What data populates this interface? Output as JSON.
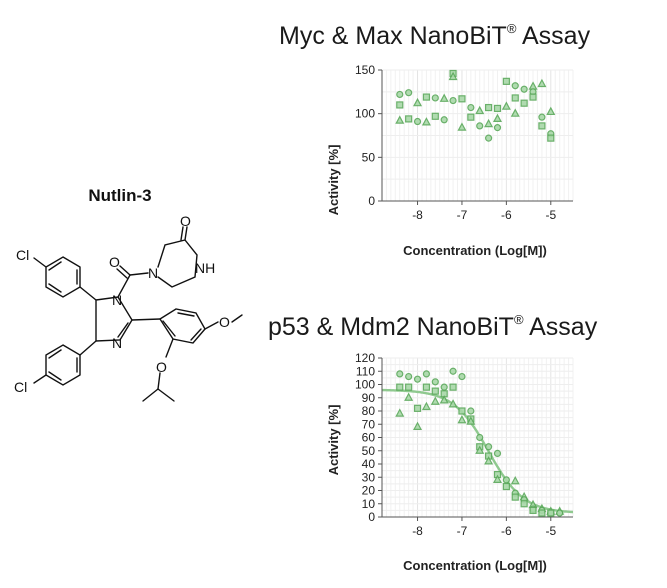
{
  "compound": {
    "name": "Nutlin-3",
    "atoms": {
      "cl1": "Cl",
      "cl2": "Cl",
      "o_amide": "O",
      "o_ketone": "O",
      "nh": "NH",
      "n_ring_1": "N",
      "n_ring_2": "N",
      "n_pip": "N",
      "o_methoxy": "O",
      "o_isopropoxy": "O"
    }
  },
  "charts": [
    {
      "title_main": "Myc & Max NanoBiT",
      "title_mark": "®",
      "title_suffix": " Assay"
    },
    {
      "title_main": "p53 & Mdm2 NanoBiT",
      "title_mark": "®",
      "title_suffix": " Assay"
    }
  ],
  "chart_data": [
    {
      "type": "scatter",
      "title": "Myc & Max NanoBiT® Assay",
      "xlabel": "Concentration (Log[M])",
      "ylabel": "Activity [%]",
      "xlim": [
        -8.8,
        -4.5
      ],
      "ylim": [
        0,
        150
      ],
      "xticks": [
        -8,
        -7,
        -6,
        -5
      ],
      "yticks": [
        0,
        50,
        100,
        150
      ],
      "grid": true,
      "color": "#5aa85a",
      "points": [
        {
          "x": -8.4,
          "y": 122
        },
        {
          "x": -8.4,
          "y": 110
        },
        {
          "x": -8.4,
          "y": 92
        },
        {
          "x": -8.2,
          "y": 124
        },
        {
          "x": -8.2,
          "y": 94
        },
        {
          "x": -8.0,
          "y": 112
        },
        {
          "x": -8.0,
          "y": 91
        },
        {
          "x": -7.8,
          "y": 119
        },
        {
          "x": -7.8,
          "y": 90
        },
        {
          "x": -7.6,
          "y": 118
        },
        {
          "x": -7.6,
          "y": 97
        },
        {
          "x": -7.4,
          "y": 117
        },
        {
          "x": -7.4,
          "y": 93
        },
        {
          "x": -7.2,
          "y": 146
        },
        {
          "x": -7.2,
          "y": 142
        },
        {
          "x": -7.2,
          "y": 115
        },
        {
          "x": -7.0,
          "y": 117
        },
        {
          "x": -7.0,
          "y": 84
        },
        {
          "x": -6.8,
          "y": 107
        },
        {
          "x": -6.8,
          "y": 96
        },
        {
          "x": -6.6,
          "y": 103
        },
        {
          "x": -6.6,
          "y": 86
        },
        {
          "x": -6.4,
          "y": 107
        },
        {
          "x": -6.4,
          "y": 88
        },
        {
          "x": -6.4,
          "y": 72
        },
        {
          "x": -6.2,
          "y": 106
        },
        {
          "x": -6.2,
          "y": 94
        },
        {
          "x": -6.2,
          "y": 84
        },
        {
          "x": -6.0,
          "y": 137
        },
        {
          "x": -6.0,
          "y": 108
        },
        {
          "x": -5.8,
          "y": 132
        },
        {
          "x": -5.8,
          "y": 118
        },
        {
          "x": -5.8,
          "y": 100
        },
        {
          "x": -5.6,
          "y": 128
        },
        {
          "x": -5.6,
          "y": 112
        },
        {
          "x": -5.4,
          "y": 131
        },
        {
          "x": -5.4,
          "y": 125
        },
        {
          "x": -5.4,
          "y": 119
        },
        {
          "x": -5.2,
          "y": 134
        },
        {
          "x": -5.2,
          "y": 96
        },
        {
          "x": -5.2,
          "y": 86
        },
        {
          "x": -5.0,
          "y": 102
        },
        {
          "x": -5.0,
          "y": 77
        },
        {
          "x": -5.0,
          "y": 72
        }
      ]
    },
    {
      "type": "scatter",
      "title": "p53 & Mdm2 NanoBiT® Assay",
      "xlabel": "Concentration (Log[M])",
      "ylabel": "Activity [%]",
      "xlim": [
        -8.8,
        -4.5
      ],
      "ylim": [
        0,
        120
      ],
      "xticks": [
        -8,
        -7,
        -6,
        -5
      ],
      "yticks": [
        0,
        10,
        20,
        30,
        40,
        50,
        60,
        70,
        80,
        90,
        100,
        110,
        120
      ],
      "grid": true,
      "color": "#5aa85a",
      "fit": {
        "model": "four-parameter logistic",
        "top": 96,
        "bottom": 3,
        "log_ic50": -6.4,
        "hill": 1.1
      },
      "points": [
        {
          "x": -8.4,
          "y": 108
        },
        {
          "x": -8.4,
          "y": 98
        },
        {
          "x": -8.4,
          "y": 78
        },
        {
          "x": -8.2,
          "y": 106
        },
        {
          "x": -8.2,
          "y": 98
        },
        {
          "x": -8.2,
          "y": 90
        },
        {
          "x": -8.0,
          "y": 104
        },
        {
          "x": -8.0,
          "y": 82
        },
        {
          "x": -8.0,
          "y": 68
        },
        {
          "x": -7.8,
          "y": 108
        },
        {
          "x": -7.8,
          "y": 98
        },
        {
          "x": -7.8,
          "y": 83
        },
        {
          "x": -7.6,
          "y": 102
        },
        {
          "x": -7.6,
          "y": 95
        },
        {
          "x": -7.6,
          "y": 87
        },
        {
          "x": -7.4,
          "y": 98
        },
        {
          "x": -7.4,
          "y": 93
        },
        {
          "x": -7.4,
          "y": 88
        },
        {
          "x": -7.2,
          "y": 110
        },
        {
          "x": -7.2,
          "y": 98
        },
        {
          "x": -7.2,
          "y": 85
        },
        {
          "x": -7.0,
          "y": 106
        },
        {
          "x": -7.0,
          "y": 80
        },
        {
          "x": -7.0,
          "y": 73
        },
        {
          "x": -6.8,
          "y": 80
        },
        {
          "x": -6.8,
          "y": 74
        },
        {
          "x": -6.8,
          "y": 72
        },
        {
          "x": -6.6,
          "y": 60
        },
        {
          "x": -6.6,
          "y": 53
        },
        {
          "x": -6.6,
          "y": 50
        },
        {
          "x": -6.4,
          "y": 53
        },
        {
          "x": -6.4,
          "y": 46
        },
        {
          "x": -6.4,
          "y": 42
        },
        {
          "x": -6.2,
          "y": 48
        },
        {
          "x": -6.2,
          "y": 32
        },
        {
          "x": -6.2,
          "y": 28
        },
        {
          "x": -6.0,
          "y": 28
        },
        {
          "x": -6.0,
          "y": 23
        },
        {
          "x": -5.8,
          "y": 27
        },
        {
          "x": -5.8,
          "y": 18
        },
        {
          "x": -5.8,
          "y": 15
        },
        {
          "x": -5.6,
          "y": 15
        },
        {
          "x": -5.6,
          "y": 13
        },
        {
          "x": -5.6,
          "y": 10
        },
        {
          "x": -5.4,
          "y": 9
        },
        {
          "x": -5.4,
          "y": 6
        },
        {
          "x": -5.4,
          "y": 5
        },
        {
          "x": -5.2,
          "y": 6
        },
        {
          "x": -5.2,
          "y": 5
        },
        {
          "x": -5.2,
          "y": 3
        },
        {
          "x": -5.0,
          "y": 4
        },
        {
          "x": -5.0,
          "y": 3
        },
        {
          "x": -5.0,
          "y": 3
        },
        {
          "x": -4.8,
          "y": 4
        },
        {
          "x": -4.8,
          "y": 3
        }
      ]
    }
  ]
}
